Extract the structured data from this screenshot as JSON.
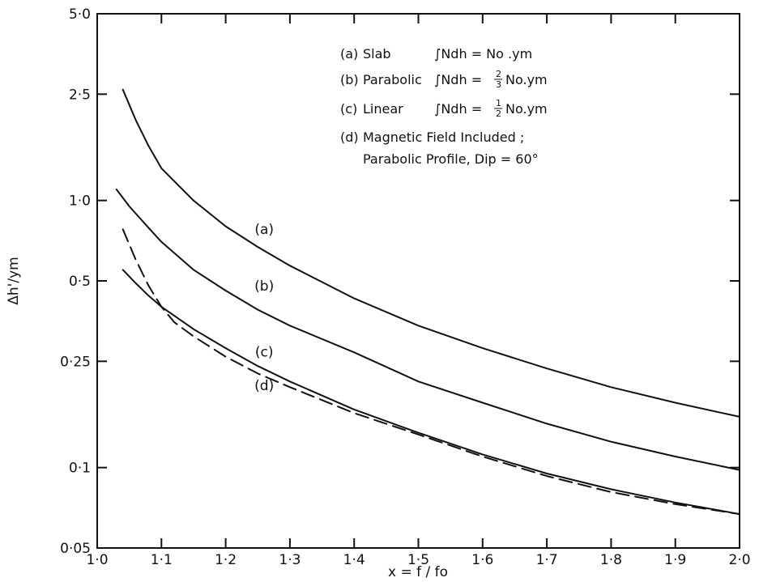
{
  "chart_data": {
    "type": "line",
    "xlabel": "x = f / fo",
    "ylabel": "Δh'/ym",
    "xlim": [
      1.0,
      2.0
    ],
    "ylim": [
      0.05,
      5.0
    ],
    "yscale": "log",
    "x_ticks": [
      "1·0",
      "1·1",
      "1·2",
      "1·3",
      "1·4",
      "1·5",
      "1·6",
      "1·7",
      "1·8",
      "1·9",
      "2·0"
    ],
    "y_ticks": [
      {
        "value": 5.0,
        "label": "5·0"
      },
      {
        "value": 2.5,
        "label": "2·5"
      },
      {
        "value": 1.0,
        "label": "1·0"
      },
      {
        "value": 0.5,
        "label": "0·5"
      },
      {
        "value": 0.25,
        "label": "0·25"
      },
      {
        "value": 0.1,
        "label": "0·1"
      },
      {
        "value": 0.05,
        "label": "0·05"
      }
    ],
    "grid": false,
    "legend": {
      "placement": "top-right",
      "entries": [
        {
          "id": "(a)",
          "name": "Slab",
          "formula": "∫Ndh = No .ym"
        },
        {
          "id": "(b)",
          "name": "Parabolic",
          "formula_prefix": "∫Ndh =",
          "frac_num": "2",
          "frac_den": "3",
          "formula_suffix": "No.ym"
        },
        {
          "id": "(c)",
          "name": "Linear",
          "formula_prefix": "∫Ndh =",
          "frac_num": "1",
          "frac_den": "2",
          "formula_suffix": "No.ym"
        },
        {
          "id": "(d)",
          "name": "Magnetic Field Included ;",
          "line2": "Parabolic Profile, Dip = 60°"
        }
      ]
    },
    "series": [
      {
        "name": "(a)",
        "style": "solid",
        "x": [
          1.04,
          1.06,
          1.08,
          1.1,
          1.15,
          1.2,
          1.25,
          1.3,
          1.4,
          1.5,
          1.6,
          1.7,
          1.8,
          1.9,
          2.0
        ],
        "y": [
          2.6,
          2.0,
          1.6,
          1.32,
          1.0,
          0.8,
          0.67,
          0.57,
          0.43,
          0.34,
          0.28,
          0.235,
          0.2,
          0.175,
          0.155
        ]
      },
      {
        "name": "(b)",
        "style": "solid",
        "x": [
          1.03,
          1.05,
          1.08,
          1.1,
          1.15,
          1.2,
          1.25,
          1.3,
          1.4,
          1.5,
          1.6,
          1.7,
          1.8,
          1.9,
          2.0
        ],
        "y": [
          1.1,
          0.95,
          0.79,
          0.7,
          0.55,
          0.46,
          0.39,
          0.34,
          0.27,
          0.21,
          0.175,
          0.146,
          0.125,
          0.11,
          0.098
        ]
      },
      {
        "name": "(c)",
        "style": "solid",
        "x": [
          1.04,
          1.06,
          1.08,
          1.1,
          1.15,
          1.2,
          1.25,
          1.3,
          1.4,
          1.5,
          1.6,
          1.7,
          1.8,
          1.9,
          2.0
        ],
        "y": [
          0.55,
          0.49,
          0.44,
          0.4,
          0.33,
          0.28,
          0.24,
          0.21,
          0.165,
          0.135,
          0.112,
          0.095,
          0.083,
          0.074,
          0.067
        ]
      },
      {
        "name": "(d)",
        "style": "dashed",
        "x": [
          1.04,
          1.06,
          1.08,
          1.1,
          1.12,
          1.15,
          1.2,
          1.25,
          1.3,
          1.4,
          1.5,
          1.6,
          1.7,
          1.8,
          1.9,
          2.0
        ],
        "y": [
          0.78,
          0.6,
          0.48,
          0.4,
          0.35,
          0.31,
          0.26,
          0.225,
          0.2,
          0.16,
          0.133,
          0.11,
          0.093,
          0.081,
          0.073,
          0.067
        ]
      }
    ],
    "curve_labels": [
      "(a)",
      "(b)",
      "(c)",
      "(d)"
    ]
  }
}
